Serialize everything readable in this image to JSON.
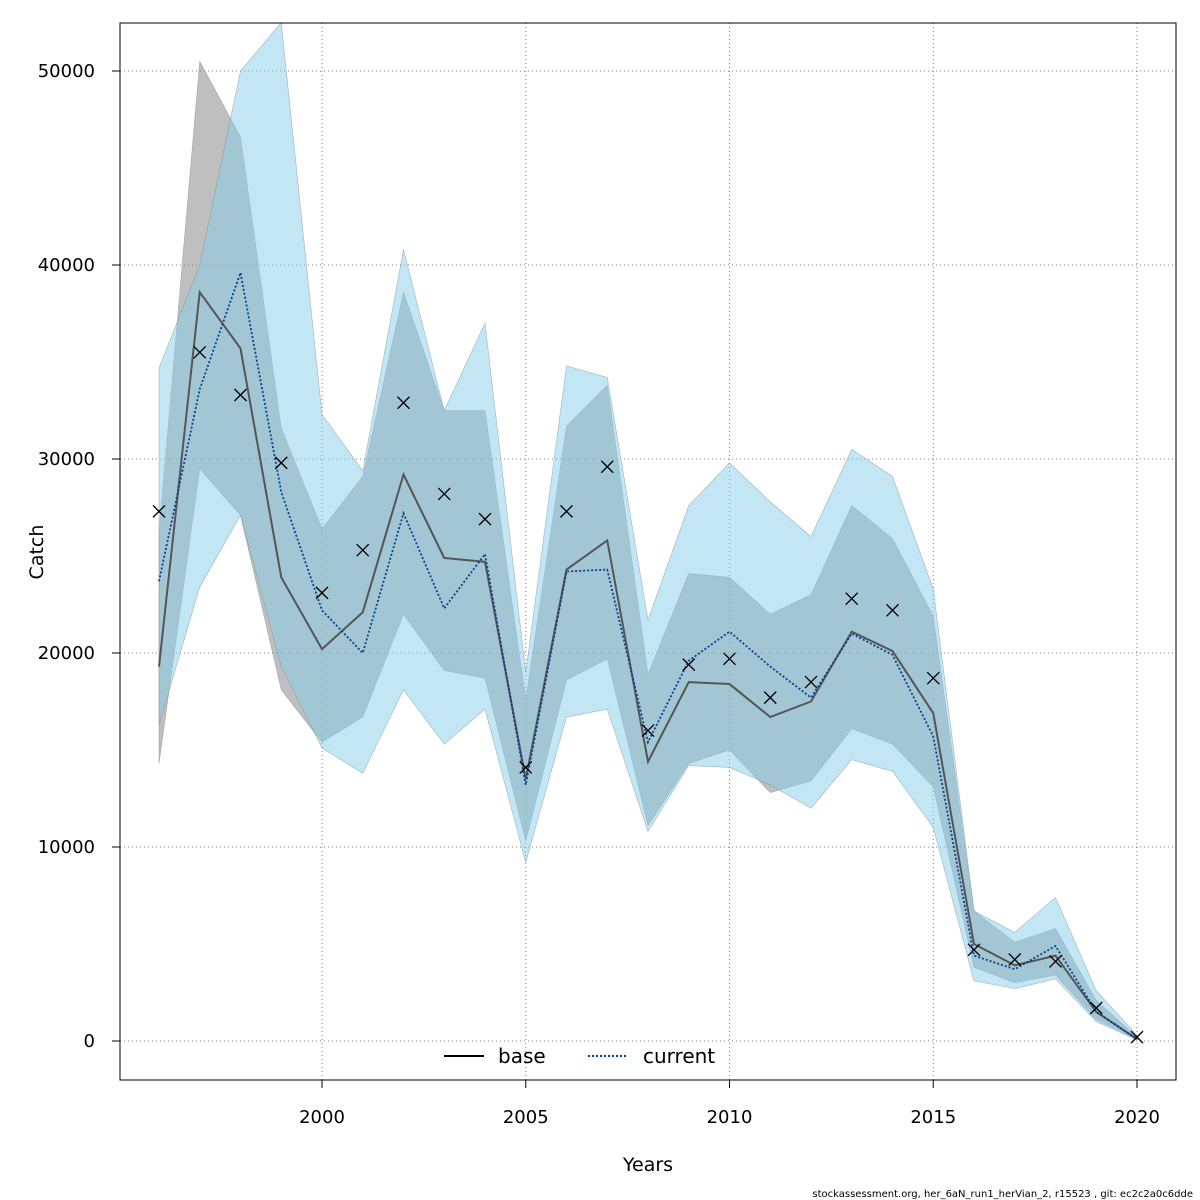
{
  "chart_data": {
    "type": "line",
    "xlabel": "Years",
    "ylabel": "Catch",
    "xlim": [
      1995.1,
      2020.9
    ],
    "ylim": [
      -2000,
      52500
    ],
    "x_ticks": [
      2000,
      2005,
      2010,
      2015,
      2020
    ],
    "y_ticks": [
      0,
      10000,
      20000,
      30000,
      40000,
      50000
    ],
    "grid": true,
    "grid_style": "dotted",
    "legend_position": "bottom-center",
    "x": [
      1996,
      1997,
      1998,
      1999,
      2000,
      2001,
      2002,
      2003,
      2004,
      2005,
      2006,
      2007,
      2008,
      2009,
      2010,
      2011,
      2012,
      2013,
      2014,
      2015,
      2016,
      2017,
      2018,
      2019,
      2020
    ],
    "series": [
      {
        "name": "base",
        "line_style": "solid",
        "color": "#555555",
        "band_color": "#8a8a8a",
        "values": [
          19300,
          38600,
          35700,
          23900,
          20200,
          22100,
          29200,
          24900,
          24700,
          13500,
          24300,
          25800,
          14400,
          18500,
          18400,
          16700,
          17500,
          21100,
          20100,
          16900,
          5000,
          3900,
          4400,
          1500,
          100
        ],
        "lower": [
          14300,
          29500,
          27100,
          18100,
          15400,
          16700,
          22000,
          19100,
          18700,
          10300,
          18600,
          19700,
          11100,
          14300,
          15000,
          12800,
          13400,
          16100,
          15300,
          13100,
          3800,
          3000,
          3400,
          1100,
          80
        ],
        "upper": [
          26200,
          50500,
          46600,
          31600,
          26400,
          29100,
          38600,
          32500,
          32500,
          17600,
          31700,
          33800,
          18900,
          24100,
          23900,
          22000,
          23000,
          27600,
          25900,
          21900,
          6700,
          5100,
          5800,
          2100,
          200
        ]
      },
      {
        "name": "current",
        "line_style": "dotted",
        "color": "#0b3d91",
        "band_color": "#87ceeb",
        "values": [
          23700,
          33600,
          39600,
          28300,
          22200,
          20000,
          27200,
          22300,
          25100,
          13200,
          24200,
          24300,
          15400,
          19600,
          21100,
          19300,
          17700,
          21000,
          19900,
          15700,
          4400,
          3700,
          4900,
          1500,
          100
        ],
        "lower": [
          16300,
          23400,
          27100,
          19300,
          15100,
          13800,
          18100,
          15300,
          17100,
          9200,
          16700,
          17100,
          10800,
          14200,
          14100,
          13200,
          12000,
          14500,
          13900,
          11000,
          3100,
          2700,
          3200,
          1000,
          50
        ],
        "upper": [
          34700,
          40000,
          50000,
          52500,
          32300,
          29400,
          40800,
          32500,
          37000,
          19000,
          34800,
          34200,
          21700,
          27600,
          29800,
          27800,
          26000,
          30500,
          29100,
          23300,
          6700,
          5600,
          7400,
          2600,
          300
        ]
      }
    ],
    "observed": {
      "marker": "x",
      "values": [
        27300,
        35500,
        33300,
        29800,
        23100,
        25300,
        32900,
        28200,
        26900,
        14100,
        27300,
        29600,
        16000,
        19400,
        19700,
        17700,
        18500,
        22800,
        22200,
        18700,
        4700,
        4200,
        4100,
        1700,
        200
      ]
    }
  },
  "footnote": "stockassessment.org, her_6aN_run1_herVian_2, r15523 , git: ec2c2a0c6dde"
}
